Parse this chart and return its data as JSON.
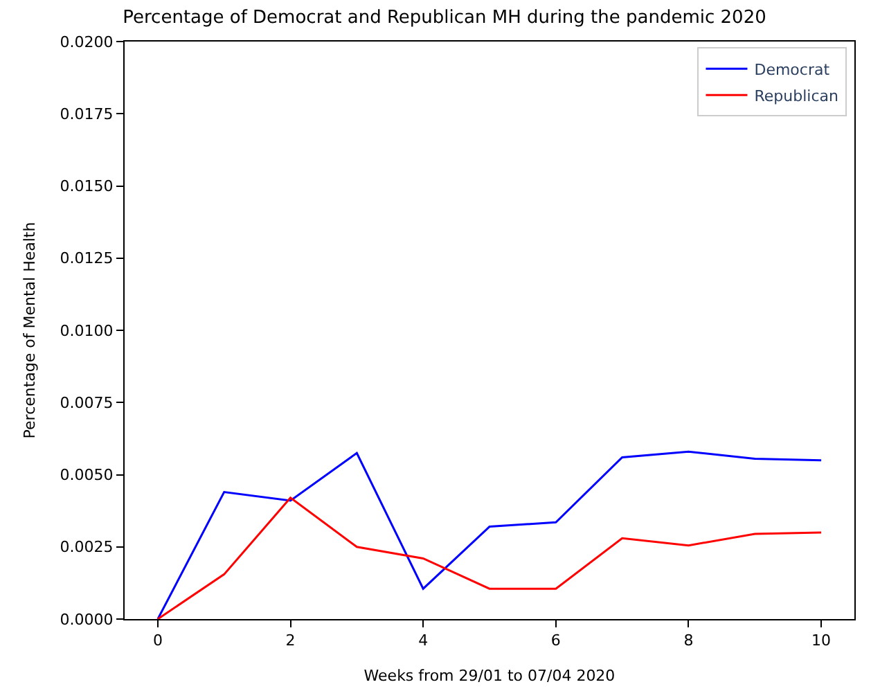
{
  "chart_data": {
    "type": "line",
    "title": "Percentage of Democrat and Republican MH during the pandemic 2020",
    "xlabel": "Weeks from 29/01 to 07/04 2020",
    "ylabel": "Percentage of Mental Health",
    "x": [
      0,
      1,
      2,
      3,
      4,
      5,
      6,
      7,
      8,
      9,
      10
    ],
    "series": [
      {
        "name": "Democrat",
        "color": "#0000ff",
        "values": [
          0,
          0.0044,
          0.0041,
          0.00575,
          0.00105,
          0.0032,
          0.00335,
          0.0056,
          0.0058,
          0.00555,
          0.0055
        ]
      },
      {
        "name": "Republican",
        "color": "#ff0000",
        "values": [
          0,
          0.00155,
          0.0042,
          0.0025,
          0.0021,
          0.00105,
          0.00105,
          0.0028,
          0.00255,
          0.00295,
          0.003
        ]
      }
    ],
    "xlim": [
      -0.5,
      10.5
    ],
    "xticks": [
      0,
      2,
      4,
      6,
      8,
      10
    ],
    "ylim": [
      0,
      0.02
    ],
    "yticks": [
      {
        "value": 0,
        "label": "0.0000"
      },
      {
        "value": 0.0025,
        "label": "0.0025"
      },
      {
        "value": 0.005,
        "label": "0.0050"
      },
      {
        "value": 0.0075,
        "label": "0.0075"
      },
      {
        "value": 0.01,
        "label": "0.0100"
      },
      {
        "value": 0.0125,
        "label": "0.0125"
      },
      {
        "value": 0.015,
        "label": "0.0150"
      },
      {
        "value": 0.0175,
        "label": "0.0175"
      },
      {
        "value": 0.02,
        "label": "0.0200"
      }
    ],
    "legend": "top right"
  }
}
